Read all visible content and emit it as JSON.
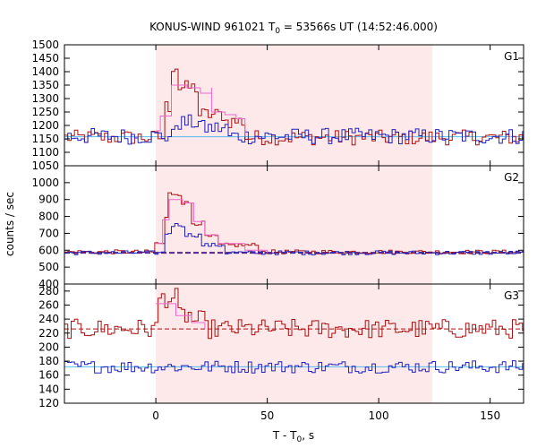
{
  "chart_data": {
    "type": "line",
    "title": {
      "main": "KONUS-WIND 961021 T",
      "sub": "0",
      "rest": " = 53566s UT (14:52:46.000)"
    },
    "xlabel": {
      "main": "T - T",
      "sub": "0",
      "rest": ", s"
    },
    "ylabel": "counts / sec",
    "xlim": [
      -41,
      165
    ],
    "xticks": [
      0,
      50,
      100,
      150
    ],
    "shaded_interval": [
      0,
      124
    ],
    "colors": {
      "shade": "#fde8ea",
      "red": "#aa1111",
      "pink": "#ee66cc",
      "blue": "#2222bb",
      "lightblue": "#55bbee",
      "purple": "#552288"
    },
    "panels": [
      {
        "name": "G1",
        "ylim": [
          1050,
          1500
        ],
        "yticks": [
          1050,
          1100,
          1150,
          1200,
          1250,
          1300,
          1350,
          1400,
          1450,
          1500
        ],
        "background": 1158,
        "background_color": "lightblue",
        "series": [
          {
            "color": "red",
            "background": 1155,
            "noise": 28,
            "peaks": [
              [
                3,
                10,
                1270
              ],
              [
                7,
                9,
                1420
              ],
              [
                9,
                19,
                1340
              ],
              [
                19,
                31,
                1240
              ],
              [
                31,
                40,
                1215
              ]
            ]
          },
          {
            "color": "blue",
            "background": 1160,
            "noise": 30,
            "peaks": [
              [
                8,
                20,
                1210
              ],
              [
                20,
                32,
                1190
              ]
            ]
          },
          {
            "color": "pink",
            "style": "step",
            "background": 1158,
            "points": [
              [
                0,
                1180
              ],
              [
                2,
                1235
              ],
              [
                7,
                1350
              ],
              [
                14,
                1340
              ],
              [
                20,
                1320
              ],
              [
                25,
                1340
              ],
              [
                25,
                1250
              ],
              [
                31,
                1240
              ],
              [
                36,
                1225
              ],
              [
                40,
                1158
              ]
            ]
          }
        ]
      },
      {
        "name": "G2",
        "ylim": [
          400,
          1100
        ],
        "yticks": [
          400,
          500,
          600,
          700,
          800,
          900,
          1000
        ],
        "background": 585,
        "background_color": "purple",
        "series": [
          {
            "color": "red",
            "background": 590,
            "noise": 12,
            "peaks": [
              [
                -1,
                3,
                640
              ],
              [
                3,
                5,
                790
              ],
              [
                5,
                11,
                935
              ],
              [
                11,
                15,
                880
              ],
              [
                15,
                21,
                760
              ],
              [
                21,
                27,
                680
              ],
              [
                27,
                45,
                630
              ]
            ]
          },
          {
            "color": "blue",
            "background": 585,
            "noise": 12,
            "peaks": [
              [
                3,
                6,
                700
              ],
              [
                6,
                13,
                750
              ],
              [
                13,
                20,
                690
              ],
              [
                20,
                30,
                630
              ]
            ]
          },
          {
            "color": "pink",
            "style": "step",
            "background": 585,
            "points": [
              [
                0,
                640
              ],
              [
                3,
                780
              ],
              [
                6,
                900
              ],
              [
                12,
                880
              ],
              [
                17,
                770
              ],
              [
                22,
                690
              ],
              [
                28,
                640
              ],
              [
                40,
                600
              ],
              [
                50,
                585
              ]
            ]
          }
        ]
      },
      {
        "name": "G3",
        "ylim": [
          120,
          290
        ],
        "yticks": [
          120,
          140,
          160,
          180,
          200,
          220,
          240,
          260,
          280
        ],
        "background": 226,
        "background_color": "red",
        "second_background": 172,
        "second_background_color": "lightblue",
        "series": [
          {
            "color": "red",
            "background": 226,
            "noise": 14,
            "peaks": [
              [
                0,
                9,
                270
              ],
              [
                9,
                16,
                245
              ],
              [
                16,
                22,
                238
              ]
            ]
          },
          {
            "color": "blue",
            "background": 172,
            "noise": 9,
            "peaks": []
          },
          {
            "color": "pink",
            "style": "step",
            "background": 226,
            "points": [
              [
                0,
                262
              ],
              [
                9,
                245
              ],
              [
                16,
                235
              ],
              [
                22,
                226
              ]
            ]
          }
        ]
      }
    ]
  }
}
